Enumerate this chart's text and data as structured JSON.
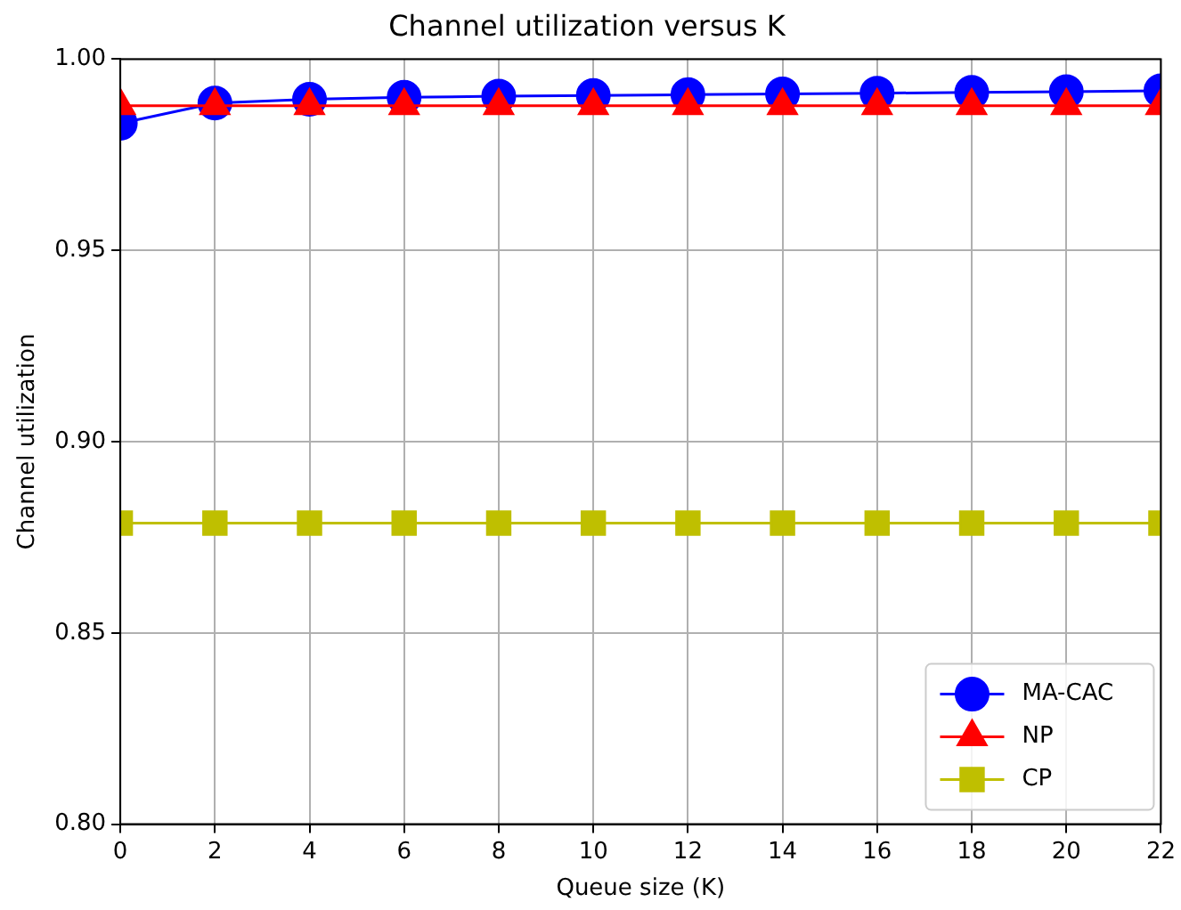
{
  "chart_data": {
    "type": "line",
    "title": "Channel utilization versus K",
    "xlabel": "Queue size (K)",
    "ylabel": "Channel utilization",
    "x": [
      0,
      2,
      4,
      6,
      8,
      10,
      12,
      14,
      16,
      18,
      20,
      22
    ],
    "series": [
      {
        "name": "MA-CAC",
        "color": "#0000ff",
        "marker": "circle",
        "values": [
          0.9832,
          0.9885,
          0.9895,
          0.99,
          0.9903,
          0.9905,
          0.9907,
          0.9909,
          0.9911,
          0.9913,
          0.9915,
          0.9917
        ]
      },
      {
        "name": "NP",
        "color": "#ff0000",
        "marker": "triangle",
        "values": [
          0.9878,
          0.9878,
          0.9878,
          0.9878,
          0.9878,
          0.9878,
          0.9878,
          0.9878,
          0.9878,
          0.9878,
          0.9878,
          0.9878
        ]
      },
      {
        "name": "CP",
        "color": "#bfbf00",
        "marker": "square",
        "values": [
          0.8787,
          0.8787,
          0.8787,
          0.8787,
          0.8787,
          0.8787,
          0.8787,
          0.8787,
          0.8787,
          0.8787,
          0.8787,
          0.8787
        ]
      }
    ],
    "xlim": [
      0,
      22
    ],
    "xticks": [
      0,
      2,
      4,
      6,
      8,
      10,
      12,
      14,
      16,
      18,
      20,
      22
    ],
    "ylim": [
      0.8,
      1.0
    ],
    "yticks": [
      {
        "value": 0.8,
        "label": "0.80"
      },
      {
        "value": 0.85,
        "label": "0.85"
      },
      {
        "value": 0.9,
        "label": "0.90"
      },
      {
        "value": 0.95,
        "label": "0.95"
      },
      {
        "value": 1.0,
        "label": "1.00"
      }
    ],
    "grid": true,
    "legend": "bottom right"
  }
}
